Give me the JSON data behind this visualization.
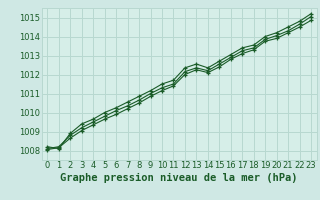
{
  "title": "Graphe pression niveau de la mer (hPa)",
  "background_color": "#cfe8e4",
  "plot_bg_color": "#d6eee8",
  "grid_color": "#b8d8d0",
  "line_color": "#1a5c28",
  "marker_color": "#1a5c28",
  "xlim": [
    -0.5,
    23.5
  ],
  "ylim": [
    1007.5,
    1015.5
  ],
  "yticks": [
    1008,
    1009,
    1010,
    1011,
    1012,
    1013,
    1014,
    1015
  ],
  "xticks": [
    0,
    1,
    2,
    3,
    4,
    5,
    6,
    7,
    8,
    9,
    10,
    11,
    12,
    13,
    14,
    15,
    16,
    17,
    18,
    19,
    20,
    21,
    22,
    23
  ],
  "series": [
    [
      1008.1,
      1008.2,
      1008.8,
      1009.2,
      1009.5,
      1009.8,
      1010.1,
      1010.35,
      1010.65,
      1011.0,
      1011.3,
      1011.5,
      1012.15,
      1012.35,
      1012.2,
      1012.55,
      1012.9,
      1013.25,
      1013.4,
      1013.85,
      1014.05,
      1014.3,
      1014.65,
      1015.05
    ],
    [
      1008.05,
      1008.15,
      1008.65,
      1009.05,
      1009.35,
      1009.65,
      1009.9,
      1010.2,
      1010.5,
      1010.85,
      1011.15,
      1011.4,
      1012.0,
      1012.25,
      1012.1,
      1012.4,
      1012.8,
      1013.1,
      1013.3,
      1013.75,
      1013.9,
      1014.2,
      1014.5,
      1014.85
    ],
    [
      1008.2,
      1008.1,
      1008.9,
      1009.4,
      1009.65,
      1010.0,
      1010.25,
      1010.55,
      1010.85,
      1011.15,
      1011.5,
      1011.7,
      1012.35,
      1012.55,
      1012.35,
      1012.7,
      1013.05,
      1013.4,
      1013.55,
      1014.0,
      1014.2,
      1014.5,
      1014.8,
      1015.2
    ]
  ],
  "title_fontsize": 7.5,
  "tick_fontsize": 6,
  "title_color": "#1a5c28",
  "tick_color": "#1a5c28"
}
